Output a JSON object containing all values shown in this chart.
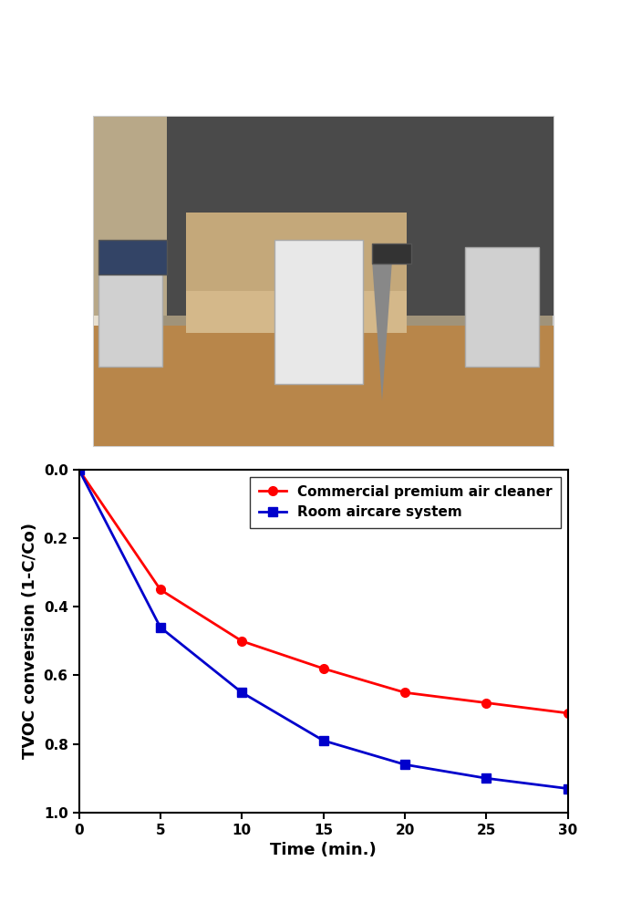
{
  "time": [
    0,
    5,
    10,
    15,
    20,
    25,
    30
  ],
  "commercial": [
    0.0,
    0.35,
    0.5,
    0.58,
    0.65,
    0.68,
    0.71
  ],
  "room_aircare": [
    0.0,
    0.46,
    0.65,
    0.79,
    0.86,
    0.9,
    0.93
  ],
  "commercial_label": "Commercial premium air cleaner",
  "room_aircare_label": "Room aircare system",
  "xlabel": "Time (min.)",
  "ylabel": "TVOC conversion (1-C/Co)",
  "xlim": [
    0,
    30
  ],
  "ylim": [
    1.0,
    0.0
  ],
  "xticks": [
    0,
    5,
    10,
    15,
    20,
    25,
    30
  ],
  "yticks": [
    0.0,
    0.2,
    0.4,
    0.6,
    0.8,
    1.0
  ],
  "commercial_color": "#ff0000",
  "room_aircare_color": "#0000cc",
  "linewidth": 2.0,
  "marker_size": 7,
  "fig_width": 6.92,
  "fig_height": 10.01,
  "photo_bg": "#a0937a",
  "photo_wall_dark": "#4a4a4a",
  "photo_wall_light": "#b8a888",
  "photo_floor": "#b8864a",
  "photo_sofa": "#c8a878",
  "photo_border": "#cccccc"
}
